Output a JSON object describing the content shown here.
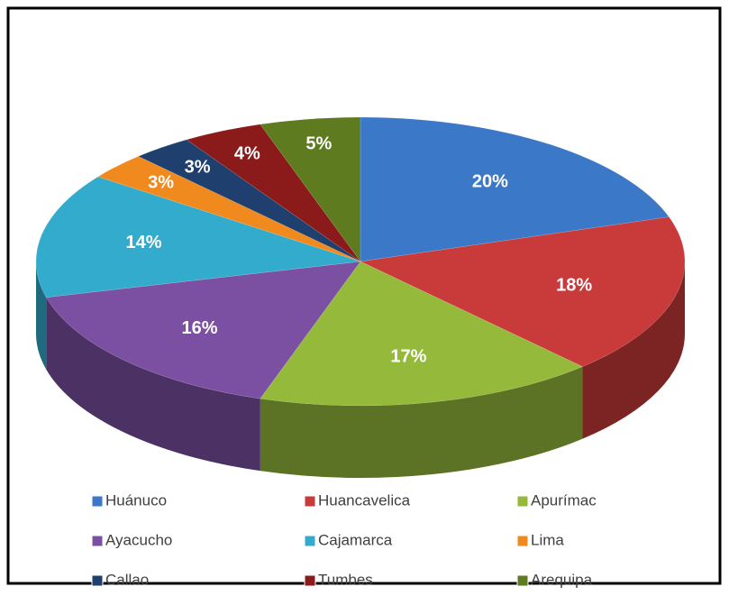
{
  "chart_data": {
    "type": "pie",
    "categories": [
      "Huánuco",
      "Huancavelica",
      "Apurímac",
      "Ayacucho",
      "Cajamarca",
      "Lima",
      "Callao",
      "Tumbes",
      "Arequipa"
    ],
    "values": [
      20,
      18,
      17,
      16,
      14,
      3,
      3,
      4,
      5
    ],
    "value_labels": [
      "20%",
      "18%",
      "17%",
      "16%",
      "14%",
      "3%",
      "3%",
      "4%",
      "5%"
    ],
    "colors": [
      "#3b78c8",
      "#c93b3b",
      "#95b93a",
      "#7b50a2",
      "#33abcc",
      "#f08a1e",
      "#1f3f6e",
      "#8b1a1a",
      "#5e7b1f"
    ],
    "legend": "bottom"
  }
}
